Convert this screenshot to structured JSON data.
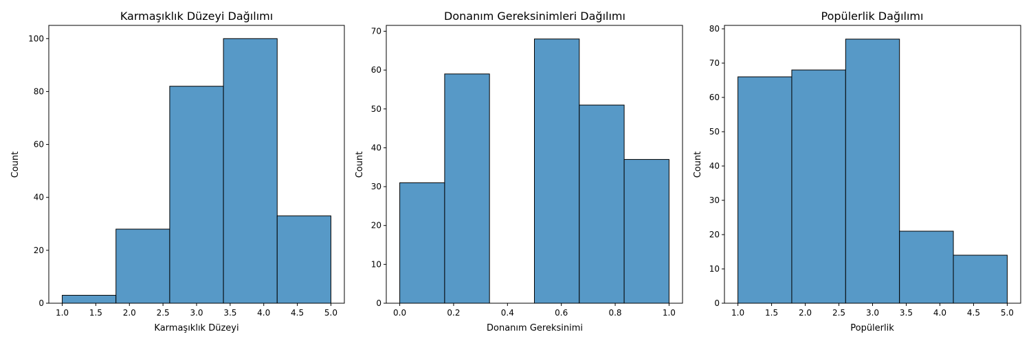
{
  "figure": {
    "background": "#ffffff",
    "bar_color": "#5799c7",
    "edge_color": "#000000"
  },
  "chart_data": [
    {
      "type": "histogram",
      "title": "Karmaşıklık Düzeyi Dağılımı",
      "xlabel": "Karmaşıklık Düzeyi",
      "ylabel": "Count",
      "bin_edges": [
        1.0,
        1.8,
        2.6,
        3.4,
        4.2,
        5.0
      ],
      "values": [
        3,
        28,
        82,
        100,
        33
      ],
      "xlim": [
        0.8,
        5.2
      ],
      "ylim": [
        0,
        105
      ],
      "xticks": [
        1.0,
        1.5,
        2.0,
        2.5,
        3.0,
        3.5,
        4.0,
        4.5,
        5.0
      ],
      "xtick_labels": [
        "1.0",
        "1.5",
        "2.0",
        "2.5",
        "3.0",
        "3.5",
        "4.0",
        "4.5",
        "5.0"
      ],
      "yticks": [
        0,
        20,
        40,
        60,
        80,
        100
      ],
      "ytick_labels": [
        "0",
        "20",
        "40",
        "60",
        "80",
        "100"
      ],
      "grid": false
    },
    {
      "type": "histogram",
      "title": "Donanım Gereksinimleri Dağılımı",
      "xlabel": "Donanım Gereksinimi",
      "ylabel": "Count",
      "bin_edges": [
        0.0,
        0.1667,
        0.3333,
        0.5,
        0.6667,
        0.8333,
        1.0
      ],
      "values": [
        31,
        59,
        0,
        68,
        51,
        37
      ],
      "xlim": [
        -0.05,
        1.05
      ],
      "ylim": [
        0,
        71.5
      ],
      "xticks": [
        0.0,
        0.2,
        0.4,
        0.6,
        0.8,
        1.0
      ],
      "xtick_labels": [
        "0.0",
        "0.2",
        "0.4",
        "0.6",
        "0.8",
        "1.0"
      ],
      "yticks": [
        0,
        10,
        20,
        30,
        40,
        50,
        60,
        70
      ],
      "ytick_labels": [
        "0",
        "10",
        "20",
        "30",
        "40",
        "50",
        "60",
        "70"
      ],
      "grid": false
    },
    {
      "type": "histogram",
      "title": "Popülerlik Dağılımı",
      "xlabel": "Popülerlik",
      "ylabel": "Count",
      "bin_edges": [
        1.0,
        1.8,
        2.6,
        3.4,
        4.2,
        5.0
      ],
      "values": [
        66,
        68,
        77,
        21,
        14
      ],
      "xlim": [
        0.8,
        5.2
      ],
      "ylim": [
        0,
        81
      ],
      "xticks": [
        1.0,
        1.5,
        2.0,
        2.5,
        3.0,
        3.5,
        4.0,
        4.5,
        5.0
      ],
      "xtick_labels": [
        "1.0",
        "1.5",
        "2.0",
        "2.5",
        "3.0",
        "3.5",
        "4.0",
        "4.5",
        "5.0"
      ],
      "yticks": [
        0,
        10,
        20,
        30,
        40,
        50,
        60,
        70,
        80
      ],
      "ytick_labels": [
        "0",
        "10",
        "20",
        "30",
        "40",
        "50",
        "60",
        "70",
        "80"
      ],
      "grid": false
    }
  ]
}
